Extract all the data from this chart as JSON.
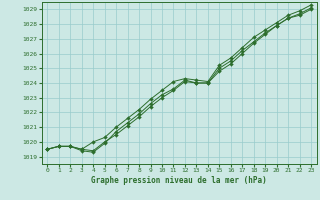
{
  "xlabel": "Graphe pression niveau de la mer (hPa)",
  "xlim": [
    -0.5,
    23.5
  ],
  "ylim": [
    1018.5,
    1029.5
  ],
  "ytick_positions": [
    1019,
    1020,
    1021,
    1022,
    1023,
    1024,
    1025,
    1026,
    1027,
    1028,
    1029
  ],
  "ytick_labels": [
    "1019",
    "1020",
    "1021",
    "1022",
    "1023",
    "1024",
    "1025",
    "1026",
    "1027",
    "1028",
    "1029"
  ],
  "xticks": [
    0,
    1,
    2,
    3,
    4,
    5,
    6,
    7,
    8,
    9,
    10,
    11,
    12,
    13,
    14,
    15,
    16,
    17,
    18,
    19,
    20,
    21,
    22,
    23
  ],
  "background_color": "#cce8e4",
  "grid_color": "#99cccc",
  "line_color": "#2d6e2d",
  "marker": "D",
  "series": [
    [
      1019.5,
      1019.7,
      1019.7,
      1019.5,
      1019.4,
      1020.0,
      1020.5,
      1021.1,
      1021.7,
      1022.4,
      1023.0,
      1023.5,
      1024.1,
      1024.0,
      1024.0,
      1024.8,
      1025.3,
      1026.0,
      1026.7,
      1027.3,
      1027.9,
      1028.4,
      1028.6,
      1029.0
    ],
    [
      1019.5,
      1019.7,
      1019.7,
      1019.4,
      1019.3,
      1019.9,
      1020.7,
      1021.3,
      1021.9,
      1022.6,
      1023.2,
      1023.6,
      1024.2,
      1024.0,
      1024.0,
      1025.0,
      1025.5,
      1026.2,
      1026.8,
      1027.4,
      1027.9,
      1028.4,
      1028.7,
      1029.1
    ],
    [
      1019.5,
      1019.7,
      1019.7,
      1019.5,
      1020.0,
      1020.3,
      1021.0,
      1021.6,
      1022.2,
      1022.9,
      1023.5,
      1024.1,
      1024.3,
      1024.2,
      1024.1,
      1025.2,
      1025.7,
      1026.4,
      1027.1,
      1027.6,
      1028.1,
      1028.6,
      1028.9,
      1029.3
    ]
  ]
}
